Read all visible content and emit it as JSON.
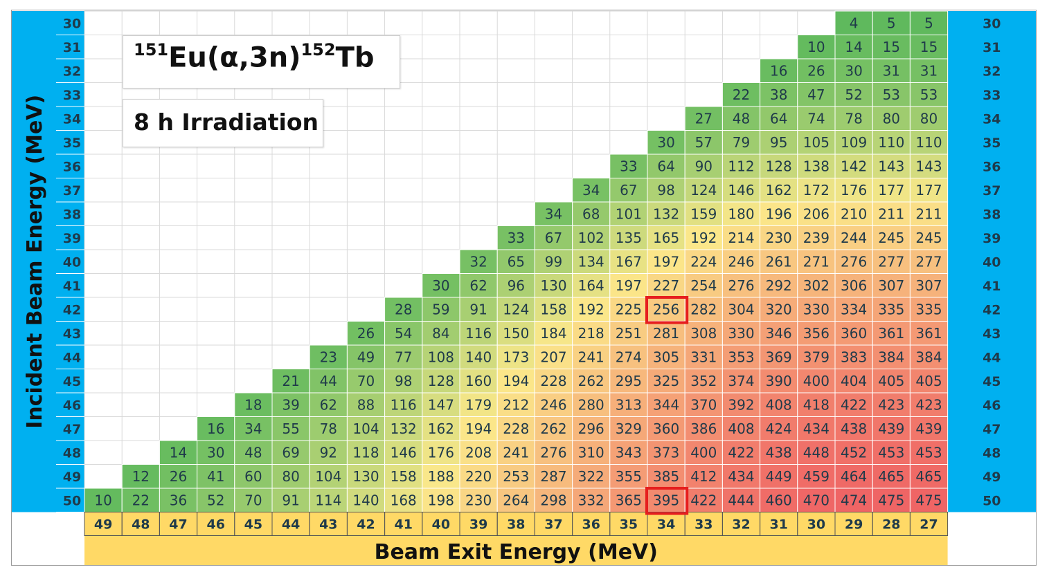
{
  "chart_data": {
    "type": "heatmap",
    "title": {
      "mass1": "151",
      "elem1": "Eu(",
      "alpha": "α",
      "reaction": ",3n)",
      "mass2": "152",
      "elem2": "Tb"
    },
    "subtitle": "8 h Irradiation",
    "ylabel": "Incident Beam Energy (MeV)",
    "xlabel": "Beam Exit Energy (MeV)",
    "y_values": [
      30,
      31,
      32,
      33,
      34,
      35,
      36,
      37,
      38,
      39,
      40,
      41,
      42,
      43,
      44,
      45,
      46,
      47,
      48,
      49,
      50
    ],
    "x_values": [
      49,
      48,
      47,
      46,
      45,
      44,
      43,
      42,
      41,
      40,
      39,
      38,
      37,
      36,
      35,
      34,
      33,
      32,
      31,
      30,
      29,
      28,
      27
    ],
    "rows": [
      {
        "incident": 30,
        "values": [
          4,
          5,
          5
        ]
      },
      {
        "incident": 31,
        "values": [
          10,
          14,
          15,
          15
        ]
      },
      {
        "incident": 32,
        "values": [
          16,
          26,
          30,
          31,
          31
        ]
      },
      {
        "incident": 33,
        "values": [
          22,
          38,
          47,
          52,
          53,
          53
        ]
      },
      {
        "incident": 34,
        "values": [
          27,
          48,
          64,
          74,
          78,
          80,
          80
        ]
      },
      {
        "incident": 35,
        "values": [
          30,
          57,
          79,
          95,
          105,
          109,
          110,
          110
        ]
      },
      {
        "incident": 36,
        "values": [
          33,
          64,
          90,
          112,
          128,
          138,
          142,
          143,
          143
        ]
      },
      {
        "incident": 37,
        "values": [
          34,
          67,
          98,
          124,
          146,
          162,
          172,
          176,
          177,
          177
        ]
      },
      {
        "incident": 38,
        "values": [
          34,
          68,
          101,
          132,
          159,
          180,
          196,
          206,
          210,
          211,
          211
        ]
      },
      {
        "incident": 39,
        "values": [
          33,
          67,
          102,
          135,
          165,
          192,
          214,
          230,
          239,
          244,
          245,
          245
        ]
      },
      {
        "incident": 40,
        "values": [
          32,
          65,
          99,
          134,
          167,
          197,
          224,
          246,
          261,
          271,
          276,
          277,
          277
        ]
      },
      {
        "incident": 41,
        "values": [
          30,
          62,
          96,
          130,
          164,
          197,
          227,
          254,
          276,
          292,
          302,
          306,
          307,
          307
        ]
      },
      {
        "incident": 42,
        "values": [
          28,
          59,
          91,
          124,
          158,
          192,
          225,
          256,
          282,
          304,
          320,
          330,
          334,
          335,
          335
        ]
      },
      {
        "incident": 43,
        "values": [
          26,
          54,
          84,
          116,
          150,
          184,
          218,
          251,
          281,
          308,
          330,
          346,
          356,
          360,
          361,
          361
        ]
      },
      {
        "incident": 44,
        "values": [
          23,
          49,
          77,
          108,
          140,
          173,
          207,
          241,
          274,
          305,
          331,
          353,
          369,
          379,
          383,
          384,
          384
        ]
      },
      {
        "incident": 45,
        "values": [
          21,
          44,
          70,
          98,
          128,
          160,
          194,
          228,
          262,
          295,
          325,
          352,
          374,
          390,
          400,
          404,
          405,
          405
        ]
      },
      {
        "incident": 46,
        "values": [
          18,
          39,
          62,
          88,
          116,
          147,
          179,
          212,
          246,
          280,
          313,
          344,
          370,
          392,
          408,
          418,
          422,
          423,
          423
        ]
      },
      {
        "incident": 47,
        "values": [
          16,
          34,
          55,
          78,
          104,
          132,
          162,
          194,
          228,
          262,
          296,
          329,
          360,
          386,
          408,
          424,
          434,
          438,
          439,
          439
        ]
      },
      {
        "incident": 48,
        "values": [
          14,
          30,
          48,
          69,
          92,
          118,
          146,
          176,
          208,
          241,
          276,
          310,
          343,
          373,
          400,
          422,
          438,
          448,
          452,
          453,
          453
        ]
      },
      {
        "incident": 49,
        "values": [
          12,
          26,
          41,
          60,
          80,
          104,
          130,
          158,
          188,
          220,
          253,
          287,
          322,
          355,
          385,
          412,
          434,
          449,
          459,
          464,
          465,
          465
        ]
      },
      {
        "incident": 50,
        "values": [
          10,
          22,
          36,
          52,
          70,
          91,
          114,
          140,
          168,
          198,
          230,
          264,
          298,
          332,
          365,
          395,
          422,
          444,
          460,
          470,
          474,
          475,
          475
        ]
      }
    ],
    "highlighted_cells": [
      {
        "incident": 42,
        "exit": 34,
        "value": 256
      },
      {
        "incident": 50,
        "exit": 34,
        "value": 395
      }
    ],
    "color_scale": {
      "low": "#5cb85c",
      "mid": "#fbe88a",
      "high": "#ef6565"
    },
    "colors": {
      "y_axis_bg": "#00b0f0",
      "x_axis_bg": "#ffd966",
      "highlight": "#e61e1e",
      "number_text": "#1f3a4a"
    }
  }
}
